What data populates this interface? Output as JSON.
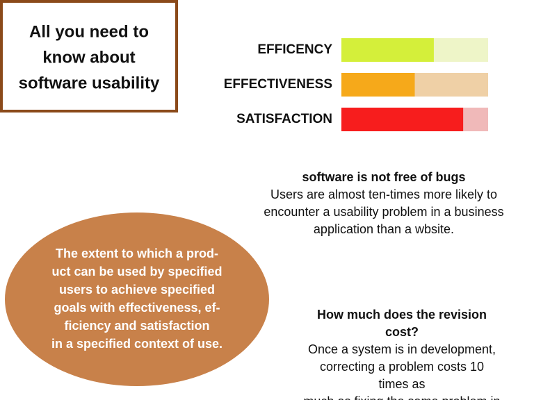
{
  "header": {
    "title_lines": [
      "All you need to",
      "know about",
      "software usability"
    ]
  },
  "bars": [
    {
      "label": "EFFICENCY",
      "value": 63,
      "color": "#d4ef3a",
      "track": "#eef5c8"
    },
    {
      "label": "EFFECTIVENESS",
      "value": 50,
      "color": "#f6a91a",
      "track": "#efd0a6"
    },
    {
      "label": "SATISFACTION",
      "value": 83,
      "color": "#f71d1d",
      "track": "#f0b9b9"
    }
  ],
  "bugs": {
    "heading": "software is not free of bugs",
    "body_lines": [
      "Users are almost ten-times more likely to",
      "encounter a usability problem in a business",
      "application than a wbsite."
    ]
  },
  "definition": {
    "lines": [
      "The extent to which a prod-",
      "uct can be used by specified",
      "users to achieve specified",
      "goals with effectiveness, ef-",
      "ficiency and satisfaction",
      "in a specified context of use."
    ]
  },
  "cost": {
    "heading_lines": [
      "How much does the revision",
      "cost?"
    ],
    "body_lines": [
      "Once a system is in development,",
      "correcting a problem costs 10",
      "times as",
      "much as fixing the same problem in"
    ]
  }
}
